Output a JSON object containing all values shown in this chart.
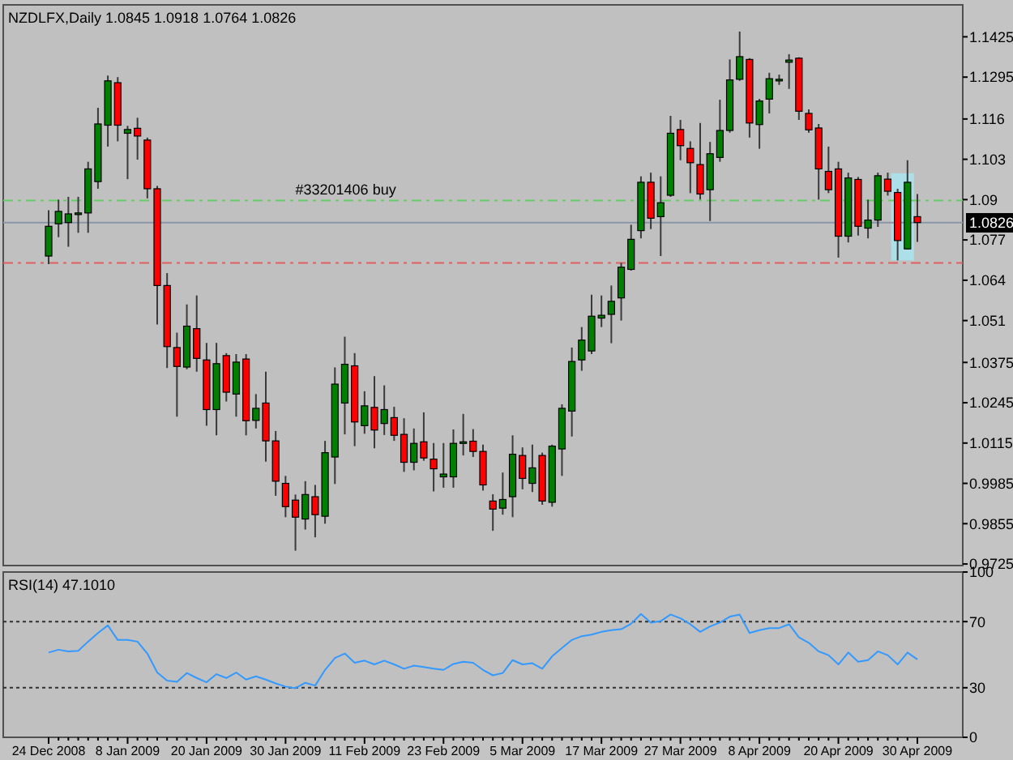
{
  "chart_data": [
    {
      "type": "candlestick",
      "title": "NZDLFX,Daily 1.0845 1.0918 1.0764 1.0826",
      "tick_labels": "y",
      "categories": [
        null,
        null,
        null,
        null,
        null,
        null,
        null,
        null,
        null,
        null,
        null,
        null,
        null,
        null,
        null,
        null,
        null,
        null,
        null,
        null,
        null,
        null,
        null,
        null,
        null,
        null,
        null,
        null,
        null,
        null,
        null,
        null,
        null,
        null,
        null,
        null,
        null,
        null,
        null,
        null,
        null,
        null,
        null,
        null,
        null,
        null,
        null,
        null,
        null,
        null,
        null,
        null,
        null,
        null,
        null,
        null,
        null,
        null,
        null,
        null,
        null,
        null,
        null,
        null,
        null,
        null,
        null,
        null,
        null,
        null,
        null,
        null,
        null,
        null,
        null,
        null,
        null,
        null,
        null,
        null,
        null,
        null,
        null,
        null,
        null,
        null,
        null,
        null,
        null
      ],
      "ohlc": [
        [
          1.0718,
          1.0866,
          1.0692,
          1.0814
        ],
        [
          1.0822,
          1.09,
          1.0779,
          1.0862
        ],
        [
          1.0826,
          1.0909,
          1.0748,
          1.0854
        ],
        [
          1.0855,
          1.0909,
          1.0793,
          1.0857
        ],
        [
          1.0857,
          1.1022,
          1.0793,
          1.0999
        ],
        [
          1.0958,
          1.1196,
          1.0935,
          1.1144
        ],
        [
          1.114,
          1.13,
          1.1071,
          1.1283
        ],
        [
          1.1277,
          1.1295,
          1.1088,
          1.114
        ],
        [
          1.1114,
          1.1138,
          1.0966,
          1.1126
        ],
        [
          1.113,
          1.1164,
          1.1029,
          1.1105
        ],
        [
          1.1092,
          1.11,
          1.0904,
          1.0935
        ],
        [
          1.0935,
          1.0944,
          1.0497,
          1.0623
        ],
        [
          1.0623,
          1.0663,
          1.0357,
          1.0426
        ],
        [
          1.0423,
          1.0471,
          1.02,
          1.0362
        ],
        [
          1.036,
          1.0562,
          1.0353,
          1.0492
        ],
        [
          1.0484,
          1.0591,
          1.0345,
          1.0388
        ],
        [
          1.0383,
          1.0438,
          1.0171,
          1.0223
        ],
        [
          1.0223,
          1.0438,
          1.014,
          1.0371
        ],
        [
          1.0397,
          1.0405,
          1.0249,
          1.0279
        ],
        [
          1.0273,
          1.0402,
          1.02,
          1.0376
        ],
        [
          1.0386,
          1.0402,
          1.014,
          1.0187
        ],
        [
          1.0188,
          1.0273,
          1.0162,
          1.0227
        ],
        [
          1.0244,
          1.0345,
          1.0055,
          1.0122
        ],
        [
          1.0122,
          1.0154,
          0.9945,
          0.9992
        ],
        [
          0.9985,
          1.0009,
          0.9876,
          0.991
        ],
        [
          0.9931,
          0.9949,
          0.9768,
          0.9876
        ],
        [
          0.987,
          0.9992,
          0.9836,
          0.9949
        ],
        [
          0.9942,
          0.998,
          0.9811,
          0.9884
        ],
        [
          0.9879,
          1.0122,
          0.9855,
          1.0084
        ],
        [
          1.007,
          1.0359,
          0.9983,
          1.0305
        ],
        [
          1.0244,
          1.0458,
          1.0143,
          1.0369
        ],
        [
          1.0364,
          1.0405,
          1.0105,
          1.0183
        ],
        [
          1.0171,
          1.0282,
          1.0145,
          1.0235
        ],
        [
          1.023,
          1.0331,
          1.0098,
          1.0157
        ],
        [
          1.0178,
          1.0301,
          1.0141,
          1.0223
        ],
        [
          1.0197,
          1.0232,
          1.0122,
          1.014
        ],
        [
          1.0143,
          1.0195,
          1.0022,
          1.0053
        ],
        [
          1.0053,
          1.0162,
          1.0027,
          1.0114
        ],
        [
          1.0119,
          1.0214,
          1.0058,
          1.0067
        ],
        [
          1.0063,
          1.0115,
          0.9959,
          1.0032
        ],
        [
          1.0006,
          1.0115,
          0.9971,
          1.0015
        ],
        [
          1.0006,
          1.0159,
          0.9971,
          1.0114
        ],
        [
          1.0116,
          1.0209,
          1.0075,
          1.0119
        ],
        [
          1.0121,
          1.016,
          1.007,
          1.0088
        ],
        [
          1.0088,
          1.011,
          0.9962,
          0.998
        ],
        [
          0.9928,
          0.995,
          0.9832,
          0.9902
        ],
        [
          0.9905,
          1.002,
          0.9884,
          0.9933
        ],
        [
          0.9942,
          1.014,
          0.9876,
          1.0079
        ],
        [
          1.0075,
          1.0101,
          0.9966,
          1.0001
        ],
        [
          0.9985,
          1.011,
          0.9957,
          1.0035
        ],
        [
          1.0075,
          1.0084,
          0.9916,
          0.9928
        ],
        [
          0.9924,
          1.011,
          0.991,
          1.0105
        ],
        [
          1.0096,
          1.024,
          1.0009,
          1.0227
        ],
        [
          1.0218,
          1.0423,
          1.0136,
          1.0378
        ],
        [
          1.0383,
          1.0489,
          1.0348,
          1.0447
        ],
        [
          1.0412,
          1.0593,
          1.0402,
          1.0524
        ],
        [
          1.0518,
          1.0591,
          1.0489,
          1.0527
        ],
        [
          1.053,
          1.0623,
          1.0437,
          1.0572
        ],
        [
          1.0583,
          1.0696,
          1.051,
          1.0682
        ],
        [
          1.0675,
          1.0819,
          1.0671,
          1.0772
        ],
        [
          1.08,
          1.0975,
          1.0775,
          1.0956
        ],
        [
          1.0956,
          1.0987,
          1.0805,
          1.084
        ],
        [
          1.0845,
          1.0975,
          1.0718,
          1.089
        ],
        [
          1.0914,
          1.117,
          1.0909,
          1.1114
        ],
        [
          1.1126,
          1.1157,
          1.1027,
          1.1074
        ],
        [
          1.1065,
          1.1088,
          1.0921,
          1.1019
        ],
        [
          1.1013,
          1.1147,
          1.09,
          1.0918
        ],
        [
          1.0932,
          1.1086,
          1.0831,
          1.1048
        ],
        [
          1.1036,
          1.1222,
          1.1022,
          1.1123
        ],
        [
          1.1123,
          1.1352,
          1.1116,
          1.1286
        ],
        [
          1.1288,
          1.1442,
          1.1283,
          1.1361
        ],
        [
          1.1352,
          1.1356,
          1.11,
          1.1147
        ],
        [
          1.1142,
          1.1225,
          1.1064,
          1.1218
        ],
        [
          1.1224,
          1.1309,
          1.1178,
          1.129
        ],
        [
          1.1286,
          1.1303,
          1.127,
          1.1288
        ],
        [
          1.1343,
          1.1369,
          1.1257,
          1.135
        ],
        [
          1.1356,
          1.1359,
          1.1157,
          1.1185
        ],
        [
          1.1178,
          1.1191,
          1.1116,
          1.1125
        ],
        [
          1.1131,
          1.1144,
          1.09,
          1.0999
        ],
        [
          1.0991,
          1.1071,
          1.0921,
          1.0932
        ],
        [
          1.0999,
          1.1022,
          1.0713,
          1.0782
        ],
        [
          1.0782,
          1.0987,
          1.0762,
          1.097
        ],
        [
          1.0965,
          1.0973,
          1.0784,
          1.0814
        ],
        [
          1.0808,
          1.09,
          1.0775,
          1.0834
        ],
        [
          1.0834,
          1.0987,
          1.0812,
          1.0977
        ],
        [
          1.0966,
          1.0987,
          1.0913,
          1.0927
        ],
        [
          1.0923,
          1.0935,
          1.0704,
          1.0768
        ],
        [
          1.0741,
          1.1027,
          1.0739,
          1.0956
        ],
        [
          1.0845,
          1.0918,
          1.0764,
          1.0826
        ]
      ],
      "ylim": [
        0.972,
        1.1528
      ],
      "yticks": [
        1.1425,
        1.1295,
        1.116,
        1.103,
        1.09,
        1.077,
        1.064,
        1.051,
        1.0375,
        1.0245,
        1.0115,
        0.9985,
        0.9855,
        0.9725
      ],
      "ref_lines": [
        {
          "axis": "y",
          "value": 1.0897,
          "label": "#33201406 buy",
          "color": "#66cc66",
          "line_style": "dashed"
        },
        {
          "axis": "y",
          "value": 1.0696,
          "color": "#e06060",
          "line_style": "dashed"
        },
        {
          "axis": "y",
          "value": 1.0826,
          "label": "1.0826",
          "color": "#8a96a8",
          "line_style": "solid"
        }
      ]
    },
    {
      "type": "line",
      "title": "RSI(14) 47.1010",
      "categories": [
        "24 Dec 2008",
        null,
        null,
        null,
        null,
        null,
        null,
        null,
        "8 Jan 2009",
        null,
        null,
        null,
        null,
        null,
        null,
        null,
        "20 Jan 2009",
        null,
        null,
        null,
        null,
        null,
        null,
        null,
        "30 Jan 2009",
        null,
        null,
        null,
        null,
        null,
        null,
        null,
        "11 Feb 2009",
        null,
        null,
        null,
        null,
        null,
        null,
        null,
        "23 Feb 2009",
        null,
        null,
        null,
        null,
        null,
        null,
        null,
        "5 Mar 2009",
        null,
        null,
        null,
        null,
        null,
        null,
        null,
        "17 Mar 2009",
        null,
        null,
        null,
        null,
        null,
        null,
        null,
        "27 Mar 2009",
        null,
        null,
        null,
        null,
        null,
        null,
        null,
        "8 Apr 2009",
        null,
        null,
        null,
        null,
        null,
        null,
        null,
        "20 Apr 2009",
        null,
        null,
        null,
        null,
        null,
        null,
        null,
        "30 Apr 2009"
      ],
      "series": [
        {
          "color": "#3399ff",
          "values": [
            51.3,
            53,
            52,
            52.3,
            57.9,
            63.1,
            67.7,
            58.9,
            58.9,
            57.9,
            50.7,
            39.2,
            34.3,
            33.6,
            38.9,
            35.9,
            33.3,
            38.2,
            35.9,
            39.2,
            34.9,
            36.9,
            34.9,
            32.6,
            30.7,
            29.7,
            33,
            31.3,
            40.8,
            48,
            50.7,
            45.1,
            46.4,
            44.1,
            46.4,
            44.1,
            41.5,
            43.4,
            42.5,
            41.5,
            40.8,
            44.4,
            45.7,
            45.1,
            40.8,
            37.5,
            38.9,
            46.7,
            44.1,
            44.8,
            41.5,
            49,
            54,
            58.9,
            61.2,
            62.1,
            63.8,
            64.8,
            65.4,
            68.7,
            74.6,
            69.4,
            70.3,
            74.3,
            72,
            68.4,
            63.8,
            67.1,
            69.4,
            73,
            74.3,
            63.1,
            64.8,
            66.1,
            66.1,
            68.4,
            60.5,
            57.2,
            52,
            49.7,
            44.1,
            51.3,
            45.7,
            46.7,
            52,
            49.7,
            44.1,
            51.3,
            47.1
          ]
        }
      ],
      "ylim": [
        0,
        100
      ],
      "yticks": [
        0,
        30,
        70,
        100
      ],
      "ref_lines": [
        {
          "axis": "y",
          "value": 70,
          "color": "#303030",
          "line_style": "dotted"
        },
        {
          "axis": "y",
          "value": 30,
          "color": "#303030",
          "line_style": "dotted"
        }
      ]
    }
  ]
}
